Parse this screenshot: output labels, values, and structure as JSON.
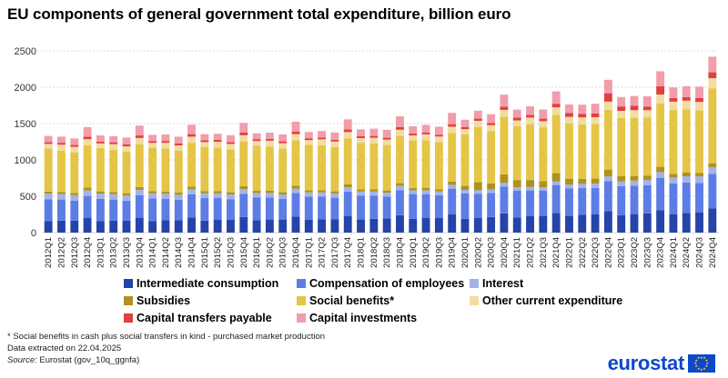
{
  "title": "EU components of general government total expenditure, billion euro",
  "chart_data": {
    "type": "stacked-bar",
    "ylim": [
      0,
      2500
    ],
    "yticks": [
      "0",
      "500",
      "1000",
      "1500",
      "2000",
      "2500"
    ],
    "grid": true,
    "categories": [
      "2012Q1",
      "2012Q2",
      "2012Q3",
      "2012Q4",
      "2013Q1",
      "2013Q2",
      "2013Q3",
      "2013Q4",
      "2014Q1",
      "2014Q2",
      "2014Q3",
      "2014Q4",
      "2015Q1",
      "2015Q2",
      "2015Q3",
      "2015Q4",
      "2016Q1",
      "2016Q2",
      "2016Q3",
      "2016Q4",
      "2017Q1",
      "2017Q2",
      "2017Q3",
      "2017Q4",
      "2018Q1",
      "2018Q2",
      "2018Q3",
      "2018Q4",
      "2019Q1",
      "2019Q2",
      "2019Q3",
      "2019Q4",
      "2020Q1",
      "2020Q2",
      "2020Q3",
      "2020Q4",
      "2021Q1",
      "2021Q2",
      "2021Q3",
      "2021Q4",
      "2022Q1",
      "2022Q2",
      "2022Q3",
      "2022Q4",
      "2023Q1",
      "2023Q2",
      "2023Q3",
      "2023Q4",
      "2024Q1",
      "2024Q2",
      "2024Q3",
      "2024Q4"
    ],
    "series": [
      {
        "name": "Intermediate consumption",
        "color": "#2644a7",
        "values": [
          160,
          165,
          165,
          200,
          160,
          165,
          165,
          205,
          160,
          170,
          170,
          210,
          165,
          175,
          175,
          215,
          170,
          180,
          180,
          220,
          175,
          185,
          185,
          230,
          180,
          190,
          195,
          240,
          190,
          200,
          200,
          250,
          190,
          200,
          215,
          265,
          210,
          225,
          230,
          270,
          230,
          245,
          250,
          295,
          240,
          255,
          265,
          310,
          250,
          270,
          275,
          335
        ]
      },
      {
        "name": "Compensation of employees",
        "color": "#5c7de5",
        "values": [
          300,
          290,
          275,
          305,
          305,
          290,
          275,
          310,
          310,
          295,
          280,
          315,
          310,
          300,
          285,
          320,
          315,
          305,
          285,
          325,
          320,
          310,
          295,
          335,
          330,
          320,
          300,
          345,
          340,
          330,
          315,
          355,
          350,
          335,
          330,
          370,
          365,
          355,
          345,
          385,
          380,
          370,
          365,
          415,
          400,
          390,
          385,
          440,
          425,
          420,
          410,
          475
        ]
      },
      {
        "name": "Interest",
        "color": "#a2b3ea",
        "values": [
          75,
          75,
          75,
          75,
          72,
          72,
          72,
          72,
          70,
          70,
          70,
          70,
          65,
          65,
          65,
          65,
          60,
          60,
          60,
          60,
          58,
          58,
          58,
          58,
          55,
          55,
          55,
          55,
          52,
          52,
          52,
          52,
          48,
          48,
          48,
          48,
          48,
          48,
          48,
          48,
          52,
          55,
          58,
          62,
          65,
          70,
          75,
          80,
          82,
          85,
          88,
          90
        ]
      },
      {
        "name": "Subsidies",
        "color": "#b09120",
        "values": [
          30,
          30,
          30,
          40,
          30,
          30,
          30,
          40,
          30,
          30,
          30,
          40,
          30,
          30,
          30,
          40,
          30,
          30,
          30,
          40,
          30,
          30,
          30,
          40,
          30,
          30,
          30,
          40,
          30,
          35,
          30,
          45,
          55,
          110,
          85,
          120,
          100,
          95,
          85,
          115,
          80,
          70,
          70,
          95,
          70,
          65,
          60,
          75,
          50,
          50,
          50,
          55
        ]
      },
      {
        "name": "Social benefits*",
        "color": "#e5c546",
        "values": [
          590,
          570,
          560,
          580,
          595,
          580,
          570,
          590,
          600,
          590,
          575,
          600,
          610,
          600,
          590,
          615,
          620,
          610,
          600,
          625,
          625,
          620,
          610,
          635,
          640,
          630,
          625,
          650,
          660,
          655,
          650,
          670,
          710,
          760,
          720,
          790,
          740,
          770,
          740,
          800,
          760,
          750,
          750,
          820,
          800,
          800,
          800,
          870,
          880,
          870,
          860,
          1030
        ]
      },
      {
        "name": "Other current expenditure",
        "color": "#f2dca2",
        "values": [
          65,
          80,
          75,
          85,
          65,
          80,
          75,
          85,
          65,
          80,
          75,
          85,
          65,
          80,
          75,
          85,
          65,
          80,
          75,
          85,
          65,
          80,
          75,
          85,
          65,
          80,
          75,
          85,
          65,
          80,
          75,
          85,
          70,
          85,
          80,
          95,
          80,
          90,
          85,
          105,
          90,
          95,
          95,
          115,
          100,
          105,
          100,
          125,
          115,
          120,
          115,
          140
        ]
      },
      {
        "name": "Capital transfers payable",
        "color": "#e04040",
        "values": [
          25,
          25,
          25,
          35,
          25,
          25,
          25,
          35,
          25,
          25,
          25,
          35,
          25,
          25,
          25,
          35,
          25,
          25,
          25,
          35,
          25,
          25,
          25,
          35,
          25,
          25,
          25,
          35,
          25,
          25,
          25,
          35,
          30,
          30,
          30,
          45,
          40,
          35,
          35,
          50,
          55,
          50,
          50,
          115,
          60,
          60,
          50,
          115,
          50,
          50,
          55,
          80
        ]
      },
      {
        "name": "Capital investments",
        "color": "#f19dac",
        "values": [
          85,
          85,
          90,
          130,
          85,
          85,
          95,
          135,
          85,
          90,
          95,
          130,
          85,
          85,
          95,
          135,
          80,
          85,
          95,
          135,
          85,
          90,
          100,
          140,
          95,
          100,
          110,
          150,
          100,
          105,
          110,
          155,
          100,
          110,
          120,
          165,
          110,
          120,
          125,
          170,
          115,
          125,
          135,
          185,
          130,
          135,
          140,
          205,
          145,
          150,
          155,
          215
        ]
      }
    ]
  },
  "notes": {
    "footnote": "* Social benefits in cash plus social transfers in kind - purchased market production",
    "extracted": "Data extracted on 22.04.2025",
    "source_label": "Source:",
    "source_text": " Eurostat (gov_10q_ggnfa)"
  },
  "logo": {
    "text": "eurostat"
  }
}
